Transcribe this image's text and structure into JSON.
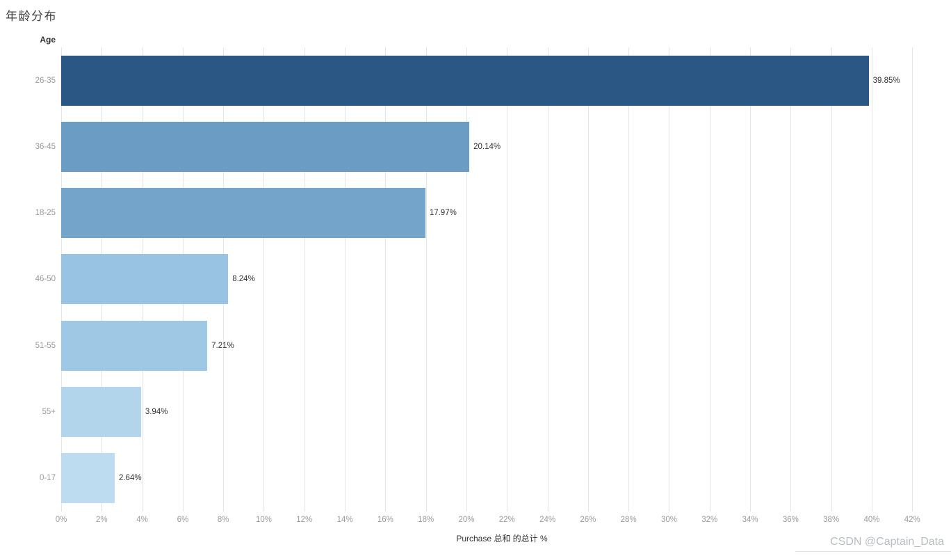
{
  "page": {
    "title": "年龄分布",
    "watermark": "CSDN @Captain_Data"
  },
  "chart_data": {
    "type": "bar",
    "orientation": "horizontal",
    "title": "年龄分布",
    "row_field_label": "Age",
    "categories": [
      "26-35",
      "36-45",
      "18-25",
      "46-50",
      "51-55",
      "55+",
      "0-17"
    ],
    "values": [
      39.85,
      20.14,
      17.97,
      8.24,
      7.21,
      3.94,
      2.64
    ],
    "value_labels": [
      "39.85%",
      "20.14%",
      "17.97%",
      "8.24%",
      "7.21%",
      "3.94%",
      "2.64%"
    ],
    "bar_colors": [
      "#2A5783",
      "#6A9CC4",
      "#74A4C9",
      "#98C3E2",
      "#9FC8E5",
      "#B3D5EB",
      "#BEDCEF"
    ],
    "xlabel": "Purchase 总和 的总计 %",
    "x_axis": {
      "min": 0,
      "max": 43.5,
      "tick_values": [
        0,
        2,
        4,
        6,
        8,
        10,
        12,
        14,
        16,
        18,
        20,
        22,
        24,
        26,
        28,
        30,
        32,
        34,
        36,
        38,
        40,
        42
      ],
      "tick_suffix": "%"
    },
    "grid": true,
    "gridline_color": "#e5e5e5",
    "legend": "none",
    "category_label_color": "#9a9a9a",
    "value_label_color": "#323232"
  }
}
